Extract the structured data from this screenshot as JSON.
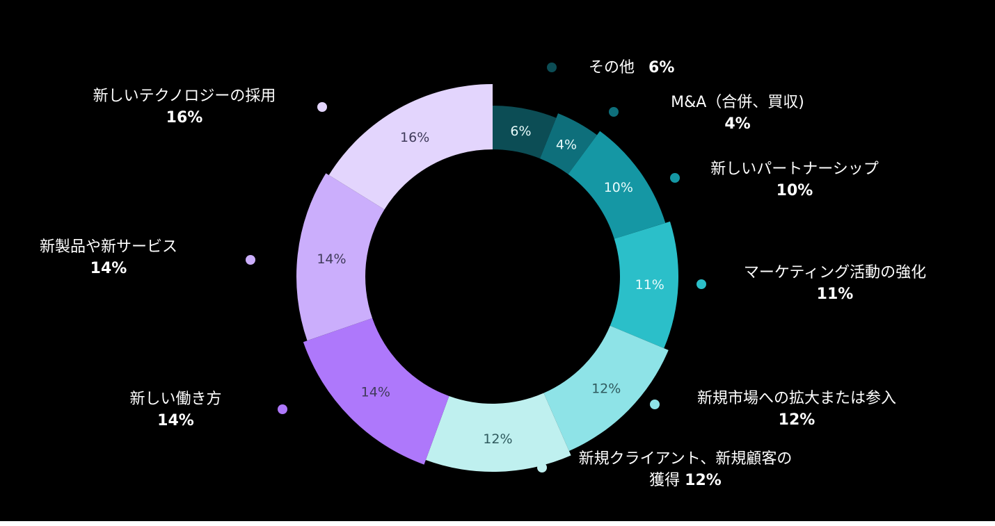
{
  "chart_data": {
    "type": "donut",
    "unit": "%",
    "segments": [
      {
        "label": "その他",
        "value": 6,
        "value_label": "6%",
        "color": "#0c4d55"
      },
      {
        "label": "M&A（合併、買収)",
        "value": 4,
        "value_label": "4%",
        "color": "#0e6f7b"
      },
      {
        "label": "新しいパートナーシップ",
        "value": 10,
        "value_label": "10%",
        "color": "#1597a4"
      },
      {
        "label": "マーケティング活動の強化",
        "value": 11,
        "value_label": "11%",
        "color": "#2bbfc9"
      },
      {
        "label": "新規市場への拡大または参入",
        "value": 12,
        "value_label": "12%",
        "color": "#8ee3e7"
      },
      {
        "label": "新規クライアント、新規顧客の獲得",
        "label_line1": "新規クライアント、新規顧客の",
        "label_line2": "獲得",
        "value": 12,
        "value_label": "12%",
        "color": "#bff0ef"
      },
      {
        "label": "新しい働き方",
        "value": 14,
        "value_label": "14%",
        "color": "#ae78fb"
      },
      {
        "label": "新製品や新サービス",
        "value": 14,
        "value_label": "14%",
        "color": "#cbaefc"
      },
      {
        "label": "新しいテクノロジーの採用",
        "value": 16,
        "value_label": "16%",
        "color": "#e3d5fd"
      }
    ]
  }
}
